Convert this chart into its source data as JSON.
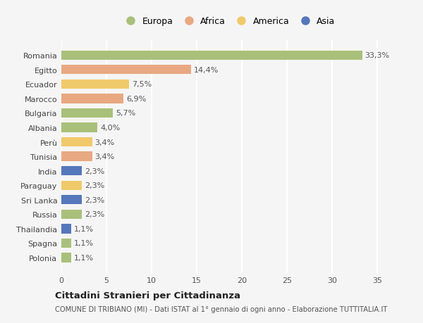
{
  "countries": [
    "Romania",
    "Egitto",
    "Ecuador",
    "Marocco",
    "Bulgaria",
    "Albania",
    "Perù",
    "Tunisia",
    "India",
    "Paraguay",
    "Sri Lanka",
    "Russia",
    "Thailandia",
    "Spagna",
    "Polonia"
  ],
  "values": [
    33.3,
    14.4,
    7.5,
    6.9,
    5.7,
    4.0,
    3.4,
    3.4,
    2.3,
    2.3,
    2.3,
    2.3,
    1.1,
    1.1,
    1.1
  ],
  "labels": [
    "33,3%",
    "14,4%",
    "7,5%",
    "6,9%",
    "5,7%",
    "4,0%",
    "3,4%",
    "3,4%",
    "2,3%",
    "2,3%",
    "2,3%",
    "2,3%",
    "1,1%",
    "1,1%",
    "1,1%"
  ],
  "continents": [
    "Europa",
    "Africa",
    "America",
    "Africa",
    "Europa",
    "Europa",
    "America",
    "Africa",
    "Asia",
    "America",
    "Asia",
    "Europa",
    "Asia",
    "Europa",
    "Europa"
  ],
  "colors": {
    "Europa": "#a8c07a",
    "Africa": "#e8a882",
    "America": "#f0c96a",
    "Asia": "#5577bb"
  },
  "xlim": [
    0,
    37
  ],
  "xticks": [
    0,
    5,
    10,
    15,
    20,
    25,
    30,
    35
  ],
  "title": "Cittadini Stranieri per Cittadinanza",
  "subtitle": "COMUNE DI TRIBIANO (MI) - Dati ISTAT al 1° gennaio di ogni anno - Elaborazione TUTTITALIA.IT",
  "bg_color": "#f5f5f5",
  "plot_bg_color": "#f5f5f5",
  "grid_color": "#ffffff",
  "bar_height": 0.65,
  "label_fontsize": 8,
  "tick_fontsize": 8,
  "legend_fontsize": 9,
  "legend_labels": [
    "Europa",
    "Africa",
    "America",
    "Asia"
  ]
}
